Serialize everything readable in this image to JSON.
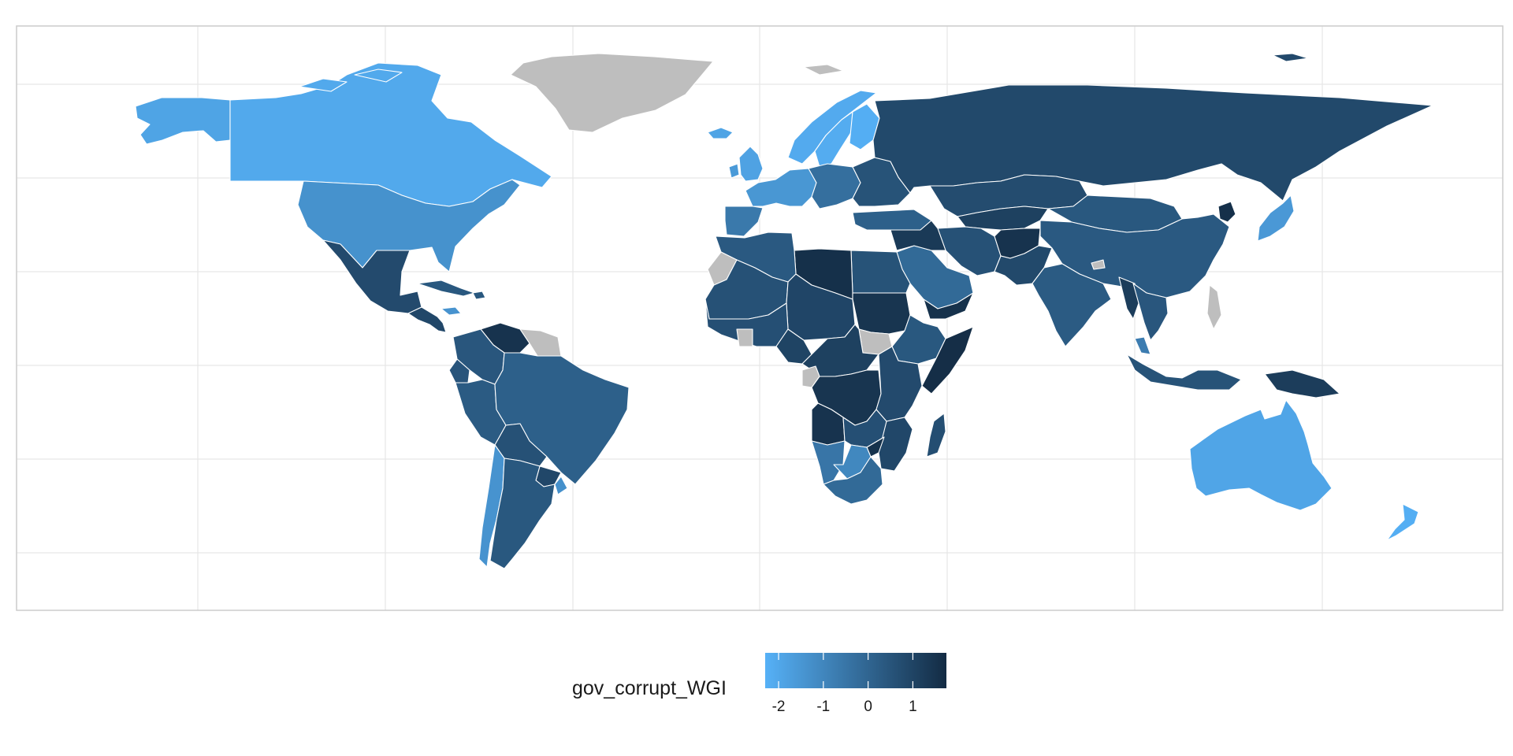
{
  "legend": {
    "title": "gov_corrupt_WGI",
    "ticks": [
      {
        "label": "-2",
        "value": -2
      },
      {
        "label": "-1",
        "value": -1
      },
      {
        "label": "0",
        "value": 0
      },
      {
        "label": "1",
        "value": 1
      }
    ],
    "range": [
      -2.3,
      1.75
    ],
    "low_color": "#56B1F7",
    "high_color": "#132B43"
  },
  "colors": {
    "no_data": "#bebebe",
    "panel_border": "#cccccc",
    "grid": "#e6e6e6",
    "border": "#ffffff"
  },
  "map": {
    "projection": "equirectangular",
    "longitude_range": [
      -180,
      190
    ],
    "latitude_range": [
      -58,
      84
    ]
  },
  "regions": [
    {
      "name": "Alaska",
      "value": -1.9
    },
    {
      "name": "Canada",
      "value": -2.05
    },
    {
      "name": "Greenland",
      "value": null
    },
    {
      "name": "United States",
      "value": -1.35
    },
    {
      "name": "Mexico",
      "value": 0.8
    },
    {
      "name": "Central America",
      "value": 0.9
    },
    {
      "name": "Cuba",
      "value": 0.4
    },
    {
      "name": "Venezuela",
      "value": 1.5
    },
    {
      "name": "Colombia",
      "value": 0.45
    },
    {
      "name": "Guianas",
      "value": null
    },
    {
      "name": "Ecuador",
      "value": 0.5
    },
    {
      "name": "Peru",
      "value": 0.3
    },
    {
      "name": "Brazil",
      "value": 0.15
    },
    {
      "name": "Bolivia",
      "value": 0.6
    },
    {
      "name": "Paraguay",
      "value": 0.9
    },
    {
      "name": "Chile",
      "value": -1.4
    },
    {
      "name": "Argentina",
      "value": 0.4
    },
    {
      "name": "Uruguay",
      "value": -1.3
    },
    {
      "name": "Iceland",
      "value": -1.9
    },
    {
      "name": "Ireland",
      "value": -1.6
    },
    {
      "name": "United Kingdom",
      "value": -1.85
    },
    {
      "name": "Norway",
      "value": -2.1
    },
    {
      "name": "Sweden",
      "value": -2.15
    },
    {
      "name": "Finland",
      "value": -2.2
    },
    {
      "name": "Western Europe",
      "value": -1.5
    },
    {
      "name": "Iberia",
      "value": -0.6
    },
    {
      "name": "Central Europe",
      "value": -0.3
    },
    {
      "name": "Eastern Europe",
      "value": 0.55
    },
    {
      "name": "Russia",
      "value": 0.85
    },
    {
      "name": "Turkey",
      "value": 0.15
    },
    {
      "name": "Kazakhstan",
      "value": 0.75
    },
    {
      "name": "Central Asia",
      "value": 1.1
    },
    {
      "name": "Iran",
      "value": 0.6
    },
    {
      "name": "Afghanistan",
      "value": 1.5
    },
    {
      "name": "Pakistan",
      "value": 0.85
    },
    {
      "name": "Mongolia",
      "value": 0.4
    },
    {
      "name": "China",
      "value": 0.35
    },
    {
      "name": "North Korea",
      "value": 1.6
    },
    {
      "name": "Japan",
      "value": -1.55
    },
    {
      "name": "India",
      "value": 0.3
    },
    {
      "name": "Bhutan",
      "value": null
    },
    {
      "name": "Myanmar",
      "value": 1.2
    },
    {
      "name": "Southeast Asia",
      "value": 0.45
    },
    {
      "name": "Philippines",
      "value": null
    },
    {
      "name": "Malaysia",
      "value": -0.7
    },
    {
      "name": "Indonesia",
      "value": 0.55
    },
    {
      "name": "Papua New Guinea",
      "value": 1.2
    },
    {
      "name": "Australia",
      "value": -1.95
    },
    {
      "name": "New Zealand",
      "value": -2.2
    },
    {
      "name": "Saudi Arabia",
      "value": -0.15
    },
    {
      "name": "Yemen",
      "value": 1.55
    },
    {
      "name": "Iraq & Syria",
      "value": 1.3
    },
    {
      "name": "Egypt",
      "value": 0.55
    },
    {
      "name": "Libya",
      "value": 1.6
    },
    {
      "name": "Maghreb",
      "value": 0.35
    },
    {
      "name": "Western Sahara",
      "value": null
    },
    {
      "name": "Mauritania & Mali",
      "value": 0.6
    },
    {
      "name": "Niger & Chad",
      "value": 0.95
    },
    {
      "name": "Sudan",
      "value": 1.45
    },
    {
      "name": "South Sudan",
      "value": null
    },
    {
      "name": "Ethiopia",
      "value": 0.4
    },
    {
      "name": "Somalia",
      "value": 1.65
    },
    {
      "name": "West Africa",
      "value": 0.65
    },
    {
      "name": "Ivory Coast",
      "value": null
    },
    {
      "name": "Nigeria",
      "value": 1.0
    },
    {
      "name": "Central Africa",
      "value": 1.1
    },
    {
      "name": "Gabon",
      "value": null
    },
    {
      "name": "DR Congo",
      "value": 1.45
    },
    {
      "name": "East Africa",
      "value": 0.8
    },
    {
      "name": "Angola",
      "value": 1.5
    },
    {
      "name": "Zambia",
      "value": 0.65
    },
    {
      "name": "Mozambique",
      "value": 0.9
    },
    {
      "name": "Zimbabwe",
      "value": 1.55
    },
    {
      "name": "Namibia",
      "value": -0.5
    },
    {
      "name": "Botswana",
      "value": -1.05
    },
    {
      "name": "South Africa",
      "value": -0.15
    },
    {
      "name": "Madagascar",
      "value": 0.7
    }
  ]
}
